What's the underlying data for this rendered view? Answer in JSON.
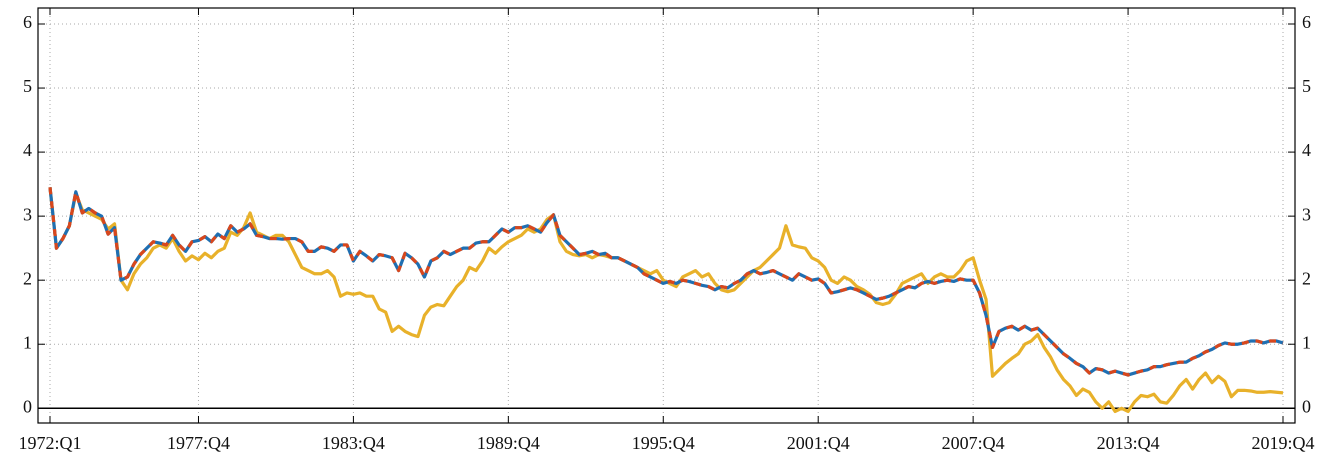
{
  "chart_data": {
    "type": "line",
    "categories": [
      "1972:Q1",
      null,
      null,
      null,
      null,
      null,
      null,
      null,
      null,
      null,
      null,
      null,
      null,
      null,
      null,
      null,
      null,
      null,
      null,
      null,
      null,
      null,
      null,
      "1977:Q4",
      null,
      null,
      null,
      null,
      null,
      null,
      null,
      null,
      null,
      null,
      null,
      null,
      null,
      null,
      null,
      null,
      null,
      null,
      null,
      null,
      null,
      null,
      null,
      "1983:Q4",
      null,
      null,
      null,
      null,
      null,
      null,
      null,
      null,
      null,
      null,
      null,
      null,
      null,
      null,
      null,
      null,
      null,
      null,
      null,
      null,
      null,
      null,
      null,
      "1989:Q4",
      null,
      null,
      null,
      null,
      null,
      null,
      null,
      null,
      null,
      null,
      null,
      null,
      null,
      null,
      null,
      null,
      null,
      null,
      null,
      null,
      null,
      null,
      null,
      "1995:Q4",
      null,
      null,
      null,
      null,
      null,
      null,
      null,
      null,
      null,
      null,
      null,
      null,
      null,
      null,
      null,
      null,
      null,
      null,
      null,
      null,
      null,
      null,
      null,
      "2001:Q4",
      null,
      null,
      null,
      null,
      null,
      null,
      null,
      null,
      null,
      null,
      null,
      null,
      null,
      null,
      null,
      null,
      null,
      null,
      null,
      null,
      null,
      null,
      null,
      "2007:Q4",
      null,
      null,
      null,
      null,
      null,
      null,
      null,
      null,
      null,
      null,
      null,
      null,
      null,
      null,
      null,
      null,
      null,
      null,
      null,
      null,
      null,
      null,
      null,
      "2013:Q4",
      null,
      null,
      null,
      null,
      null,
      null,
      null,
      null,
      null,
      null,
      null,
      null,
      null,
      null,
      null,
      null,
      null,
      null,
      null,
      null,
      null,
      null,
      null,
      "2019:Q4"
    ],
    "series": [
      {
        "color": "#e8b12a",
        "style": "solid",
        "values": [
          3.45,
          2.5,
          2.65,
          2.85,
          3.35,
          3.1,
          3.05,
          3.0,
          2.95,
          2.8,
          2.88,
          2.0,
          1.85,
          2.1,
          2.25,
          2.35,
          2.5,
          2.55,
          2.5,
          2.65,
          2.45,
          2.3,
          2.38,
          2.32,
          2.42,
          2.35,
          2.45,
          2.5,
          2.75,
          2.7,
          2.82,
          3.05,
          2.75,
          2.7,
          2.65,
          2.7,
          2.7,
          2.6,
          2.4,
          2.2,
          2.15,
          2.1,
          2.1,
          2.15,
          2.05,
          1.75,
          1.8,
          1.78,
          1.8,
          1.75,
          1.75,
          1.55,
          1.5,
          1.2,
          1.28,
          1.2,
          1.15,
          1.12,
          1.45,
          1.58,
          1.62,
          1.6,
          1.75,
          1.9,
          2.0,
          2.2,
          2.15,
          2.3,
          2.5,
          2.42,
          2.52,
          2.6,
          2.65,
          2.7,
          2.8,
          2.75,
          2.8,
          2.95,
          3.02,
          2.6,
          2.45,
          2.4,
          2.38,
          2.4,
          2.35,
          2.4,
          2.38,
          2.35,
          2.35,
          2.3,
          2.25,
          2.2,
          2.15,
          2.1,
          2.15,
          2.0,
          1.95,
          1.9,
          2.05,
          2.1,
          2.15,
          2.05,
          2.1,
          1.95,
          1.85,
          1.82,
          1.85,
          1.95,
          2.05,
          2.15,
          2.2,
          2.3,
          2.4,
          2.5,
          2.85,
          2.55,
          2.52,
          2.5,
          2.35,
          2.3,
          2.2,
          2.0,
          1.95,
          2.05,
          2.0,
          1.9,
          1.85,
          1.78,
          1.65,
          1.62,
          1.65,
          1.78,
          1.95,
          2.0,
          2.05,
          2.1,
          1.95,
          2.05,
          2.1,
          2.05,
          2.05,
          2.15,
          2.3,
          2.35,
          2.0,
          1.7,
          0.5,
          0.6,
          0.7,
          0.78,
          0.85,
          1.0,
          1.05,
          1.15,
          0.95,
          0.8,
          0.6,
          0.45,
          0.35,
          0.2,
          0.3,
          0.25,
          0.1,
          0.0,
          0.1,
          -0.05,
          0.0,
          -0.05,
          0.1,
          0.2,
          0.18,
          0.22,
          0.1,
          0.08,
          0.2,
          0.35,
          0.45,
          0.3,
          0.45,
          0.55,
          0.4,
          0.5,
          0.42,
          0.18,
          0.28,
          0.28,
          0.27,
          0.25,
          0.25,
          0.26,
          0.25,
          0.24
        ]
      },
      {
        "color": "#1f6fb2",
        "style": "solid",
        "values": [
          3.45,
          2.5,
          2.65,
          2.85,
          3.38,
          3.05,
          3.12,
          3.05,
          3.0,
          2.72,
          2.82,
          2.0,
          2.05,
          2.25,
          2.4,
          2.5,
          2.6,
          2.58,
          2.55,
          2.7,
          2.55,
          2.45,
          2.6,
          2.62,
          2.68,
          2.6,
          2.72,
          2.65,
          2.85,
          2.75,
          2.8,
          2.88,
          2.7,
          2.68,
          2.65,
          2.65,
          2.64,
          2.65,
          2.65,
          2.6,
          2.45,
          2.45,
          2.52,
          2.5,
          2.45,
          2.55,
          2.55,
          2.3,
          2.45,
          2.38,
          2.3,
          2.4,
          2.38,
          2.35,
          2.15,
          2.42,
          2.35,
          2.25,
          2.05,
          2.3,
          2.35,
          2.45,
          2.4,
          2.45,
          2.5,
          2.5,
          2.58,
          2.6,
          2.6,
          2.7,
          2.8,
          2.75,
          2.82,
          2.82,
          2.85,
          2.8,
          2.75,
          2.9,
          3.02,
          2.7,
          2.6,
          2.5,
          2.4,
          2.42,
          2.45,
          2.4,
          2.42,
          2.35,
          2.35,
          2.3,
          2.25,
          2.2,
          2.1,
          2.05,
          2.0,
          1.95,
          1.98,
          1.95,
          2.0,
          1.98,
          1.95,
          1.92,
          1.9,
          1.85,
          1.9,
          1.88,
          1.95,
          2.0,
          2.1,
          2.15,
          2.1,
          2.12,
          2.15,
          2.1,
          2.05,
          2.0,
          2.1,
          2.05,
          2.0,
          2.02,
          1.95,
          1.8,
          1.82,
          1.85,
          1.88,
          1.85,
          1.8,
          1.75,
          1.7,
          1.72,
          1.75,
          1.8,
          1.85,
          1.9,
          1.88,
          1.95,
          1.98,
          1.95,
          1.98,
          2.0,
          1.98,
          2.02,
          2.0,
          2.0,
          1.8,
          1.45,
          0.95,
          1.2,
          1.25,
          1.28,
          1.22,
          1.28,
          1.22,
          1.25,
          1.15,
          1.05,
          0.95,
          0.85,
          0.78,
          0.7,
          0.65,
          0.55,
          0.62,
          0.6,
          0.55,
          0.58,
          0.55,
          0.52,
          0.55,
          0.58,
          0.6,
          0.65,
          0.65,
          0.68,
          0.7,
          0.72,
          0.72,
          0.78,
          0.82,
          0.88,
          0.92,
          0.98,
          1.02,
          1.0,
          1.0,
          1.02,
          1.05,
          1.05,
          1.02,
          1.05,
          1.05,
          1.02
        ]
      },
      {
        "color": "#d9471c",
        "style": "dashed",
        "values": [
          3.45,
          2.5,
          2.65,
          2.85,
          3.38,
          3.05,
          3.12,
          3.05,
          3.0,
          2.72,
          2.82,
          2.0,
          2.05,
          2.25,
          2.4,
          2.5,
          2.6,
          2.58,
          2.55,
          2.7,
          2.55,
          2.45,
          2.6,
          2.62,
          2.68,
          2.6,
          2.72,
          2.65,
          2.85,
          2.75,
          2.8,
          2.88,
          2.7,
          2.68,
          2.65,
          2.65,
          2.64,
          2.65,
          2.65,
          2.6,
          2.45,
          2.45,
          2.52,
          2.5,
          2.45,
          2.55,
          2.55,
          2.3,
          2.45,
          2.38,
          2.3,
          2.4,
          2.38,
          2.35,
          2.15,
          2.42,
          2.35,
          2.25,
          2.05,
          2.3,
          2.35,
          2.45,
          2.4,
          2.45,
          2.5,
          2.5,
          2.58,
          2.6,
          2.6,
          2.7,
          2.8,
          2.75,
          2.82,
          2.82,
          2.85,
          2.8,
          2.75,
          2.9,
          3.02,
          2.7,
          2.6,
          2.5,
          2.4,
          2.42,
          2.45,
          2.4,
          2.42,
          2.35,
          2.35,
          2.3,
          2.25,
          2.2,
          2.1,
          2.05,
          2.0,
          1.95,
          1.98,
          1.95,
          2.0,
          1.98,
          1.95,
          1.92,
          1.9,
          1.85,
          1.9,
          1.88,
          1.95,
          2.0,
          2.1,
          2.15,
          2.1,
          2.12,
          2.15,
          2.1,
          2.05,
          2.0,
          2.1,
          2.05,
          2.0,
          2.02,
          1.95,
          1.8,
          1.82,
          1.85,
          1.88,
          1.85,
          1.8,
          1.75,
          1.7,
          1.72,
          1.75,
          1.8,
          1.85,
          1.9,
          1.88,
          1.95,
          1.98,
          1.95,
          1.98,
          2.0,
          1.98,
          2.02,
          2.0,
          2.0,
          1.8,
          1.45,
          0.95,
          1.2,
          1.25,
          1.28,
          1.22,
          1.28,
          1.22,
          1.25,
          1.15,
          1.05,
          0.95,
          0.85,
          0.78,
          0.7,
          0.65,
          0.55,
          0.62,
          0.6,
          0.55,
          0.58,
          0.55,
          0.52,
          0.55,
          0.58,
          0.6,
          0.65,
          0.65,
          0.68,
          0.7,
          0.72,
          0.72,
          0.78,
          0.82,
          0.88,
          0.92,
          0.98,
          1.02,
          1.0,
          1.0,
          1.02,
          1.05,
          1.05,
          1.02,
          1.05,
          1.05,
          1.02
        ]
      }
    ],
    "ylim": [
      -0.23,
      6.25
    ],
    "yticks": [
      0,
      1,
      2,
      3,
      4,
      5,
      6
    ],
    "grid": true,
    "zero_line": true,
    "right_axis": true
  }
}
